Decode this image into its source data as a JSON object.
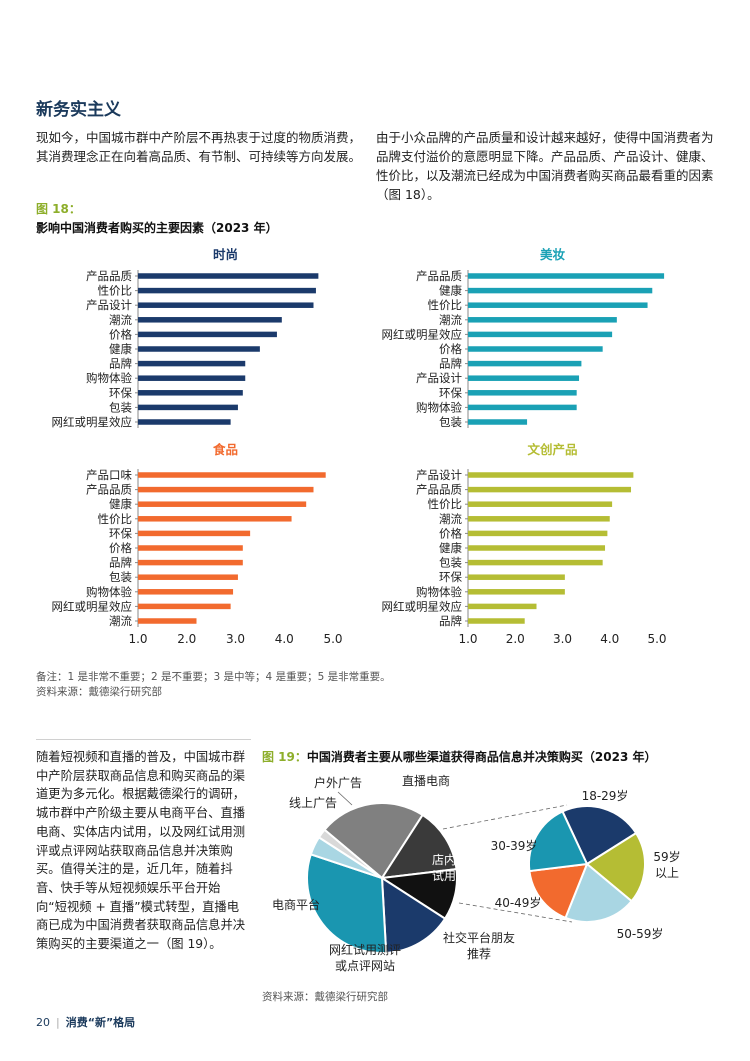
{
  "section_title": "新务实主义",
  "para_left": "现如今，中国城市群中产阶层不再热衷于过度的物质消费，其消费理念正在向着高品质、有节制、可持续等方向发展。",
  "para_right": "由于小众品牌的产品质量和设计越来越好，使得中国消费者为品牌支付溢价的意愿明显下降。产品品质、产品设计、健康、性价比，以及潮流已经成为中国消费者购买商品最看重的因素（图 18）。",
  "fig18_label": "图 18：",
  "fig18_title": "影响中国消费者购买的主要因素（2023 年）",
  "fig18_note": "备注：1 是非常不重要；2 是不重要；3 是中等；4 是重要；5 是非常重要。",
  "fig18_source": "资料来源：戴德梁行研究部",
  "para_bottom": "随着短视频和直播的普及，中国城市群中产阶层获取商品信息和购买商品的渠道更为多元化。根据戴德梁行的调研，城市群中产阶级主要从电商平台、直播电商、实体店内试用，以及网红试用测评或点评网站获取商品信息并决策购买。值得关注的是，近几年，随着抖音、快手等从短视频娱乐平台开始向“短视频 + 直播”模式转型，直播电商已成为中国消费者获取商品信息并决策购买的主要渠道之一（图 19）。",
  "fig19_label": "图 19：",
  "fig19_title": "中国消费者主要从哪些渠道获得商品信息并决策购买（2023 年）",
  "fig19_source": "资料来源：戴德梁行研究部",
  "footer": {
    "page": "20",
    "title": "消费“新”格局"
  },
  "chart_data": [
    {
      "type": "bar",
      "orientation": "horizontal",
      "title": "时尚",
      "color": "#1b3a6b",
      "categories": [
        "产品品质",
        "性价比",
        "产品设计",
        "潮流",
        "价格",
        "健康",
        "品牌",
        "购物体验",
        "环保",
        "包装",
        "网红或明星效应"
      ],
      "values": [
        4.7,
        4.65,
        4.6,
        3.95,
        3.85,
        3.5,
        3.2,
        3.2,
        3.15,
        3.05,
        2.9
      ],
      "xlim": [
        1.0,
        5.0
      ],
      "xticks": []
    },
    {
      "type": "bar",
      "orientation": "horizontal",
      "title": "美妆",
      "color": "#1aa1b5",
      "categories": [
        "产品品质",
        "健康",
        "性价比",
        "潮流",
        "网红或明星效应",
        "价格",
        "品牌",
        "产品设计",
        "环保",
        "购物体验",
        "包装"
      ],
      "values": [
        5.15,
        4.9,
        4.8,
        4.15,
        4.05,
        3.85,
        3.4,
        3.35,
        3.3,
        3.3,
        2.25
      ],
      "xlim": [
        1.0,
        5.0
      ],
      "xticks": []
    },
    {
      "type": "bar",
      "orientation": "horizontal",
      "title": "食品",
      "color": "#f26a2e",
      "categories": [
        "产品口味",
        "产品品质",
        "健康",
        "性价比",
        "环保",
        "价格",
        "品牌",
        "包装",
        "购物体验",
        "网红或明星效应",
        "潮流"
      ],
      "values": [
        4.85,
        4.6,
        4.45,
        4.15,
        3.3,
        3.15,
        3.15,
        3.05,
        2.95,
        2.9,
        2.2
      ],
      "xlim": [
        1.0,
        5.0
      ],
      "xticks": [
        "1.0",
        "2.0",
        "3.0",
        "4.0",
        "5.0"
      ]
    },
    {
      "type": "bar",
      "orientation": "horizontal",
      "title": "文创产品",
      "color": "#b5bd34",
      "categories": [
        "产品设计",
        "产品品质",
        "性价比",
        "潮流",
        "价格",
        "健康",
        "包装",
        "环保",
        "购物体验",
        "网红或明星效应",
        "品牌"
      ],
      "values": [
        4.5,
        4.45,
        4.05,
        4.0,
        3.95,
        3.9,
        3.85,
        3.05,
        3.05,
        2.45,
        2.2
      ],
      "xlim": [
        1.0,
        5.0
      ],
      "xticks": [
        "1.0",
        "2.0",
        "3.0",
        "4.0",
        "5.0"
      ]
    },
    {
      "type": "pie",
      "title": "中国消费者主要从哪些渠道获得商品信息并决策购买（2023 年）",
      "slices": [
        {
          "label": "直播电商",
          "value": 23,
          "color": "#808080"
        },
        {
          "label": "店内试用",
          "value": 14,
          "color": "#3a3a3a"
        },
        {
          "label": "社交平台朋友推荐",
          "value": 11,
          "color": "#111111"
        },
        {
          "label": "网红试用测评或点评网站",
          "value": 15,
          "color": "#1b3a6b"
        },
        {
          "label": "电商平台",
          "value": 31,
          "color": "#1a96b0"
        },
        {
          "label": "线上广告",
          "value": 4,
          "color": "#a9d6e3"
        },
        {
          "label": "户外广告",
          "value": 2,
          "color": "#d9d9d9"
        }
      ]
    },
    {
      "type": "pie",
      "title": "店内试用",
      "slices": [
        {
          "label": "18-29岁",
          "value": 23,
          "color": "#1b3a6b"
        },
        {
          "label": "59岁以上",
          "value": 20,
          "color": "#b5bd34"
        },
        {
          "label": "50-59岁",
          "value": 20,
          "color": "#a9d6e3"
        },
        {
          "label": "40-49岁",
          "value": 17,
          "color": "#f26a2e"
        },
        {
          "label": "30-39岁",
          "value": 20,
          "color": "#1a96b0"
        }
      ]
    }
  ]
}
